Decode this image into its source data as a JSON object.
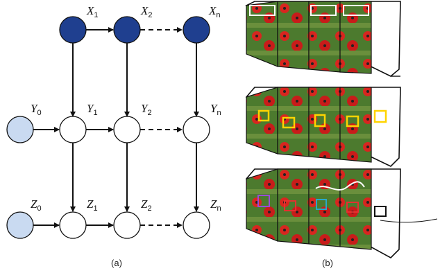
{
  "panel_a": {
    "caption": "(a)",
    "nodes": {
      "x1": {
        "base": "X",
        "sub": "1"
      },
      "x2": {
        "base": "X",
        "sub": "2"
      },
      "xn": {
        "base": "X",
        "sub": "n"
      },
      "y0": {
        "base": "Y",
        "sub": "0"
      },
      "y1": {
        "base": "Y",
        "sub": "1"
      },
      "y2": {
        "base": "Y",
        "sub": "2"
      },
      "yn": {
        "base": "Y",
        "sub": "n"
      },
      "z0": {
        "base": "Z",
        "sub": "0"
      },
      "z1": {
        "base": "Z",
        "sub": "1"
      },
      "z2": {
        "base": "Z",
        "sub": "2"
      },
      "zn": {
        "base": "Z",
        "sub": "n"
      }
    }
  },
  "panel_b": {
    "caption": "(b)"
  },
  "colors": {
    "observed_fill": "#1f3f8f",
    "initial_fill": "#c9daf1",
    "hidden_fill": "#ffffff",
    "frame_border": "#111111",
    "detection_box": "#ffd400",
    "track_box": "#e53030"
  }
}
